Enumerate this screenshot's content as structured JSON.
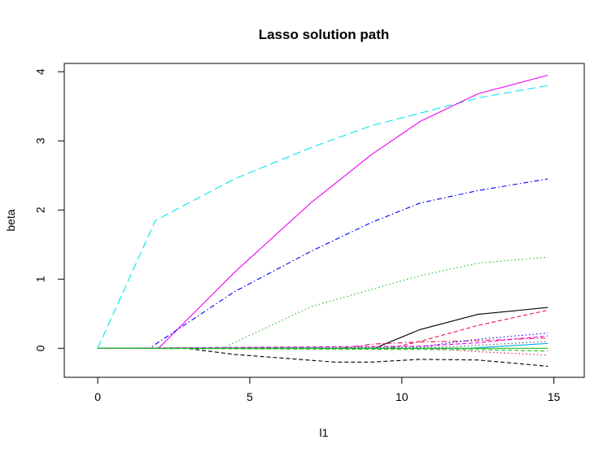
{
  "chart_data": {
    "type": "line",
    "title": "Lasso solution path",
    "xlabel": "l1",
    "ylabel": "beta",
    "xlim": [
      -1.1,
      16.0
    ],
    "ylim": [
      -0.42,
      4.12
    ],
    "xticks": [
      0,
      5,
      10,
      15
    ],
    "yticks": [
      0,
      1,
      2,
      3,
      4
    ],
    "grid": false,
    "legend": "none",
    "series": [
      {
        "color": "#00e5ee",
        "dash": "long",
        "x": [
          0,
          1.9,
          4.5,
          7.0,
          9.0,
          10.6,
          12.5,
          14.8
        ],
        "y": [
          0,
          1.85,
          2.45,
          2.9,
          3.22,
          3.4,
          3.62,
          3.8
        ]
      },
      {
        "color": "#ee00ee",
        "dash": "solid",
        "x": [
          0,
          1.9,
          2.0,
          4.5,
          7.0,
          9.0,
          10.6,
          12.5,
          14.8
        ],
        "y": [
          0,
          0,
          0,
          1.1,
          2.1,
          2.8,
          3.28,
          3.68,
          3.95
        ]
      },
      {
        "color": "#0000ee",
        "dash": "dotdash",
        "x": [
          0,
          1.7,
          4.5,
          7.0,
          9.0,
          10.6,
          12.5,
          14.8
        ],
        "y": [
          0,
          0,
          0.82,
          1.4,
          1.82,
          2.1,
          2.28,
          2.45
        ]
      },
      {
        "color": "#22bb22",
        "dash": "dotted",
        "x": [
          0,
          4.1,
          7.0,
          9.0,
          10.6,
          12.5,
          14.8
        ],
        "y": [
          0,
          0,
          0.6,
          0.85,
          1.05,
          1.23,
          1.32
        ]
      },
      {
        "color": "#000000",
        "dash": "solid",
        "x": [
          0,
          9.1,
          10.6,
          12.5,
          14.8
        ],
        "y": [
          0,
          0,
          0.27,
          0.49,
          0.59
        ]
      },
      {
        "color": "#ee1144",
        "dash": "dashed",
        "x": [
          0,
          9.6,
          10.6,
          12.5,
          14.8
        ],
        "y": [
          0,
          0,
          0.1,
          0.33,
          0.55
        ]
      },
      {
        "color": "#000000",
        "dash": "dashed",
        "x": [
          0,
          2.9,
          4.5,
          7.8,
          9.0,
          10.6,
          12.5,
          14.8
        ],
        "y": [
          0,
          0,
          -0.09,
          -0.2,
          -0.2,
          -0.16,
          -0.17,
          -0.26
        ]
      },
      {
        "color": "#ee1144",
        "dash": "dotdash",
        "x": [
          0,
          8.0,
          9.0,
          10.6,
          12.5,
          14.8
        ],
        "y": [
          0,
          0,
          0.06,
          0.09,
          0.11,
          0.15
        ]
      },
      {
        "color": "#0000ee",
        "dash": "dotted",
        "x": [
          0,
          10.2,
          12.5,
          14.8
        ],
        "y": [
          0,
          0,
          0.13,
          0.22
        ]
      },
      {
        "color": "#ee00ee",
        "dash": "dashed",
        "x": [
          0,
          10.6,
          12.5,
          14.8
        ],
        "y": [
          0,
          0.03,
          0.08,
          0.18
        ]
      },
      {
        "color": "#ee1144",
        "dash": "dotted",
        "x": [
          0,
          10.8,
          12.5,
          14.8
        ],
        "y": [
          0,
          0,
          -0.05,
          -0.1
        ]
      },
      {
        "color": "#00aaee",
        "dash": "solid",
        "x": [
          0,
          12.2,
          14.8
        ],
        "y": [
          0,
          0,
          0.07
        ]
      },
      {
        "color": "#22bb22",
        "dash": "dashed",
        "x": [
          0,
          12.5,
          14.8
        ],
        "y": [
          0,
          -0.02,
          -0.04
        ]
      },
      {
        "color": "#555555",
        "dash": "dotted",
        "x": [
          0,
          11.5,
          14.8
        ],
        "y": [
          0,
          0.02,
          0.1
        ]
      },
      {
        "color": "#22bb22",
        "dash": "solid",
        "x": [
          0,
          14.8
        ],
        "y": [
          0,
          0
        ]
      }
    ]
  }
}
